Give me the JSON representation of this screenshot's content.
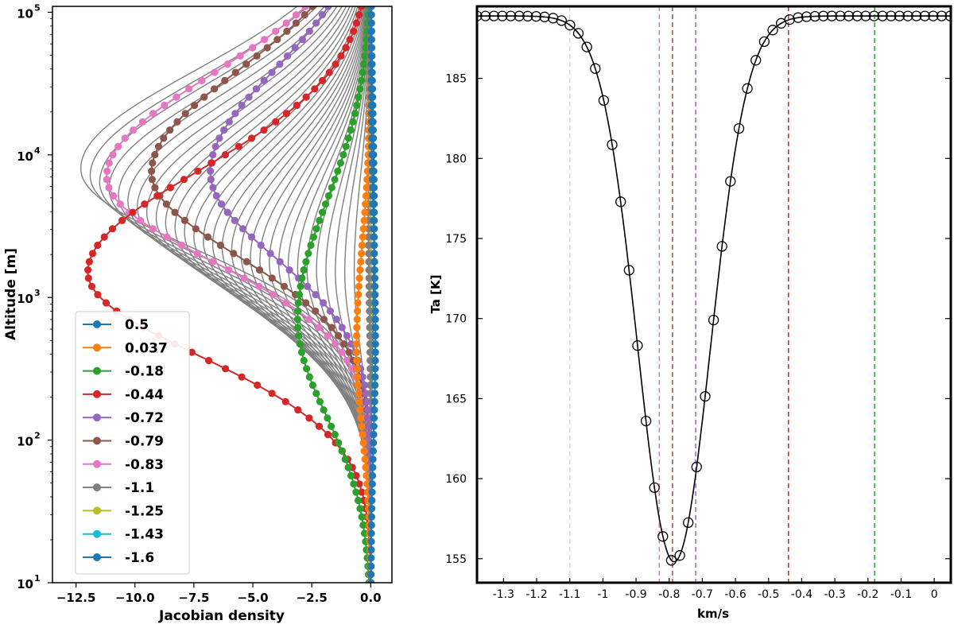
{
  "chart_data": [
    {
      "type": "line",
      "xlabel": "Jacobian density",
      "ylabel": "Altitude [m]",
      "xlim": [
        -13.5,
        0.9
      ],
      "ylim": [
        10,
        110000
      ],
      "yscale": "log",
      "xticks": [
        -12.5,
        -10.0,
        -7.5,
        -5.0,
        -2.5,
        0.0
      ],
      "xtick_labels": [
        "−12.5",
        "−10.0",
        "−7.5",
        "−5.0",
        "−2.5",
        "0.0"
      ],
      "ytick_bases": [
        "10",
        "10",
        "10",
        "10",
        "10"
      ],
      "ytick_exps": [
        "1",
        "2",
        "3",
        "4",
        "5"
      ],
      "legend_position": "lower-left",
      "background_curves": {
        "color": "#808080",
        "count": 30,
        "peak_range": [
          -12.3,
          -0.7
        ],
        "altitude_range_m": [
          1500,
          8000
        ]
      },
      "series": [
        {
          "name": "0.5",
          "color": "#1f77b4",
          "peak": 0.2,
          "peak_alt_m": 500,
          "width": 1.5
        },
        {
          "name": "0.037",
          "color": "#ff7f0e",
          "peak": -0.6,
          "peak_alt_m": 450,
          "width": 1.3
        },
        {
          "name": "-0.18",
          "color": "#2ca02c",
          "peak": -3.1,
          "peak_alt_m": 700,
          "width": 1.5
        },
        {
          "name": "-0.44",
          "color": "#d62728",
          "peak": -12.0,
          "peak_alt_m": 1500,
          "width": 1.3
        },
        {
          "name": "-0.72",
          "color": "#9467bd",
          "peak": -6.8,
          "peak_alt_m": 7500,
          "width": 1.3
        },
        {
          "name": "-0.79",
          "color": "#8c564b",
          "peak": -9.3,
          "peak_alt_m": 7500,
          "width": 1.3
        },
        {
          "name": "-0.83",
          "color": "#e377c2",
          "peak": -11.2,
          "peak_alt_m": 7000,
          "width": 1.3
        },
        {
          "name": "-1.1",
          "color": "#7f7f7f",
          "peak": -0.1,
          "peak_alt_m": 5000,
          "width": 1.5
        },
        {
          "name": "-1.25",
          "color": "#bcbd22",
          "peak": 0.0,
          "peak_alt_m": 3000,
          "width": 1.5
        },
        {
          "name": "-1.43",
          "color": "#17becf",
          "peak": 0.0,
          "peak_alt_m": 3000,
          "width": 1.5
        },
        {
          "name": "-1.6",
          "color": "#1f77b4",
          "peak": 0.15,
          "peak_alt_m": 3000,
          "width": 1.5
        }
      ]
    },
    {
      "type": "line",
      "xlabel": "km/s",
      "ylabel": "Ta [K]",
      "xlim": [
        -1.38,
        0.05
      ],
      "ylim": [
        153.5,
        189.5
      ],
      "xticks": [
        -1.3,
        -1.2,
        -1.1,
        -1,
        -0.9,
        -0.8,
        -0.7,
        -0.6,
        -0.5,
        -0.4,
        -0.3,
        -0.2,
        -0.1,
        0
      ],
      "xtick_labels": [
        "-1.3",
        "-1.2",
        "-1.1",
        "-1",
        "-0.9",
        "-0.8",
        "-0.7",
        "-0.6",
        "-0.5",
        "-0.4",
        "-0.3",
        "-0.2",
        "-0.1",
        "0"
      ],
      "yticks": [
        155,
        160,
        165,
        170,
        175,
        180,
        185
      ],
      "ytick_labels": [
        "155",
        "160",
        "165",
        "170",
        "175",
        "180",
        "185"
      ],
      "line_profile": {
        "center_kms": -0.785,
        "baseline_K": 188.9,
        "min_K": 154.8,
        "width_kms": 0.11,
        "marker": "open-circle"
      },
      "vlines": [
        {
          "x": -1.1,
          "color": "#d9d9d9"
        },
        {
          "x": -0.83,
          "color": "#e377c2"
        },
        {
          "x": -0.79,
          "color": "#8c564b"
        },
        {
          "x": -0.72,
          "color": "#9467bd"
        },
        {
          "x": -0.44,
          "color": "#d62728"
        },
        {
          "x": -0.18,
          "color": "#2ca02c"
        }
      ]
    }
  ]
}
